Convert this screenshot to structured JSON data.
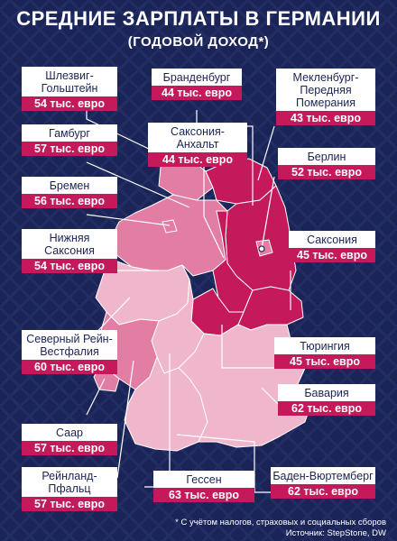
{
  "title": "СРЕДНИЕ ЗАРПЛАТЫ В ГЕРМАНИИ",
  "subtitle": "(ГОДОВОЙ ДОХОД*)",
  "colors": {
    "background": "#1b2456",
    "accent": "#c4195a",
    "map_light": "#f0b6cc",
    "map_mid": "#e27ea3",
    "map_dark": "#c4195a",
    "label_bg": "#ffffff",
    "text_dark": "#1b2456"
  },
  "regions": [
    {
      "id": "sh",
      "name": "Шлезвиг-Гольштейн",
      "value": "54 тыс. евро",
      "shade": "mid"
    },
    {
      "id": "hh",
      "name": "Гамбург",
      "value": "57 тыс. евро",
      "shade": "mid"
    },
    {
      "id": "hb",
      "name": "Бремен",
      "value": "56 тыс. евро",
      "shade": "mid"
    },
    {
      "id": "ni",
      "name": "Нижняя Саксония",
      "value": "54 тыс. евро",
      "shade": "mid"
    },
    {
      "id": "nw",
      "name": "Северный Рейн-Вестфалия",
      "value": "60 тыс. евро",
      "shade": "light"
    },
    {
      "id": "sl",
      "name": "Саар",
      "value": "57 тыс. евро",
      "shade": "mid"
    },
    {
      "id": "rp",
      "name": "Рейнланд-Пфальц",
      "value": "57 тыс. евро",
      "shade": "mid"
    },
    {
      "id": "bb",
      "name": "Бранденбург",
      "value": "44 тыс. евро",
      "shade": "dark"
    },
    {
      "id": "mv",
      "name": "Мекленбург-Передняя Померания",
      "value": "43 тыс. евро",
      "shade": "dark"
    },
    {
      "id": "st",
      "name": "Саксония-Анхальт",
      "value": "44 тыс. евро",
      "shade": "dark"
    },
    {
      "id": "be",
      "name": "Берлин",
      "value": "52 тыс. евро",
      "shade": "mid"
    },
    {
      "id": "sn",
      "name": "Саксония",
      "value": "45 тыс. евро",
      "shade": "dark"
    },
    {
      "id": "th",
      "name": "Тюрингия",
      "value": "45 тыс. евро",
      "shade": "dark"
    },
    {
      "id": "by",
      "name": "Бавария",
      "value": "62 тыс. евро",
      "shade": "light"
    },
    {
      "id": "he",
      "name": "Гессен",
      "value": "63 тыс. евро",
      "shade": "light"
    },
    {
      "id": "bw",
      "name": "Баден-Вюртемберг",
      "value": "62 тыс. евро",
      "shade": "light"
    }
  ],
  "footnote": "* С учётом налогов, страховых и социальных сборов",
  "source": "Источник: StepStone, DW"
}
